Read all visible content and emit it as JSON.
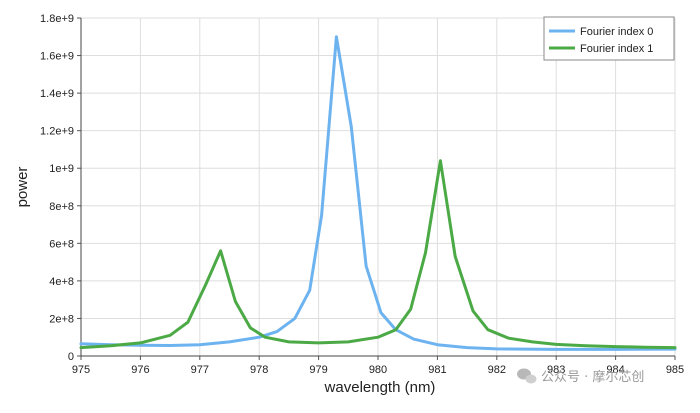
{
  "chart_data": {
    "type": "line",
    "title": "",
    "xlabel": "wavelength (nm)",
    "ylabel": "power",
    "xlim": [
      975,
      985
    ],
    "ylim": [
      0,
      1800000000
    ],
    "x_ticks": [
      "975",
      "976",
      "977",
      "978",
      "979",
      "980",
      "981",
      "982",
      "983",
      "984",
      "985"
    ],
    "y_ticks": [
      "0",
      "2e+8",
      "4e+8",
      "6e+8",
      "8e+8",
      "1e+9",
      "1.2e+9",
      "1.4e+9",
      "1.6e+9",
      "1.8e+9"
    ],
    "grid": true,
    "legend_position": "top-right",
    "series": [
      {
        "name": "Fourier index 0",
        "color": "#6db3f0",
        "points": [
          [
            975,
            65000000
          ],
          [
            975.5,
            60000000
          ],
          [
            976,
            57000000
          ],
          [
            976.5,
            56000000
          ],
          [
            977,
            60000000
          ],
          [
            977.5,
            75000000
          ],
          [
            978,
            100000000
          ],
          [
            978.3,
            130000000
          ],
          [
            978.6,
            200000000
          ],
          [
            978.85,
            350000000
          ],
          [
            979.05,
            750000000
          ],
          [
            979.3,
            1700000000
          ],
          [
            979.55,
            1220000000
          ],
          [
            979.8,
            480000000
          ],
          [
            980.05,
            230000000
          ],
          [
            980.3,
            140000000
          ],
          [
            980.6,
            90000000
          ],
          [
            981,
            60000000
          ],
          [
            981.5,
            45000000
          ],
          [
            982,
            38000000
          ],
          [
            983,
            35000000
          ],
          [
            984,
            35000000
          ],
          [
            985,
            37000000
          ]
        ]
      },
      {
        "name": "Fourier index 1",
        "color": "#4caa46",
        "points": [
          [
            975,
            45000000
          ],
          [
            975.5,
            55000000
          ],
          [
            976,
            70000000
          ],
          [
            976.5,
            110000000
          ],
          [
            976.8,
            180000000
          ],
          [
            977.1,
            380000000
          ],
          [
            977.35,
            560000000
          ],
          [
            977.6,
            290000000
          ],
          [
            977.85,
            150000000
          ],
          [
            978.1,
            100000000
          ],
          [
            978.5,
            75000000
          ],
          [
            979,
            70000000
          ],
          [
            979.5,
            75000000
          ],
          [
            980,
            100000000
          ],
          [
            980.3,
            140000000
          ],
          [
            980.55,
            250000000
          ],
          [
            980.8,
            550000000
          ],
          [
            981.05,
            1040000000
          ],
          [
            981.3,
            530000000
          ],
          [
            981.6,
            240000000
          ],
          [
            981.85,
            140000000
          ],
          [
            982.2,
            95000000
          ],
          [
            982.6,
            75000000
          ],
          [
            983,
            62000000
          ],
          [
            983.5,
            55000000
          ],
          [
            984,
            50000000
          ],
          [
            984.5,
            47000000
          ],
          [
            985,
            45000000
          ]
        ]
      }
    ]
  },
  "watermark": {
    "icon": "wechat-icon",
    "text": "公众号 · 摩尔芯创"
  }
}
